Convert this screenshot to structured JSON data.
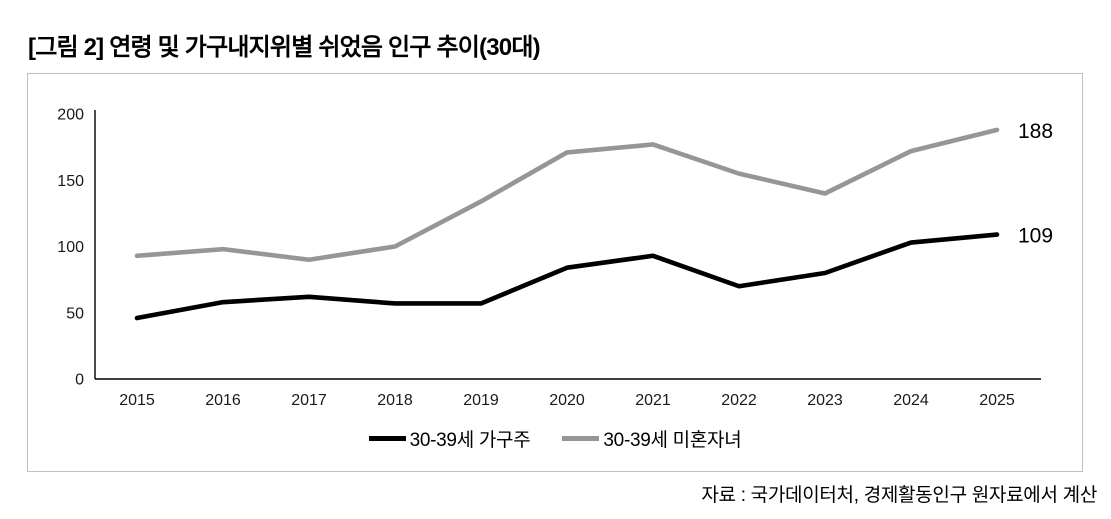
{
  "page": {
    "title": "[그림 2] 연령 및 가구내지위별 쉬었음 인구 추이(30대)",
    "source_note": "자료 : 국가데이터처, 경제활동인구 원자료에서 계산"
  },
  "chart_data": {
    "type": "line",
    "categories": [
      "2015",
      "2016",
      "2017",
      "2018",
      "2019",
      "2020",
      "2021",
      "2022",
      "2023",
      "2024",
      "2025"
    ],
    "series": [
      {
        "name": "30-39세 가구주",
        "color": "#000000",
        "values": [
          46,
          58,
          62,
          57,
          57,
          84,
          93,
          70,
          80,
          103,
          109
        ],
        "end_label": "109"
      },
      {
        "name": "30-39세 미혼자녀",
        "color": "#969696",
        "values": [
          93,
          98,
          90,
          100,
          134,
          171,
          177,
          155,
          140,
          172,
          188
        ],
        "end_label": "188"
      }
    ],
    "ylim": [
      0,
      200
    ],
    "yticks": [
      "0",
      "50",
      "100",
      "150",
      "200"
    ],
    "grid": false,
    "legend_position": "bottom",
    "axis_color": "#000000"
  }
}
